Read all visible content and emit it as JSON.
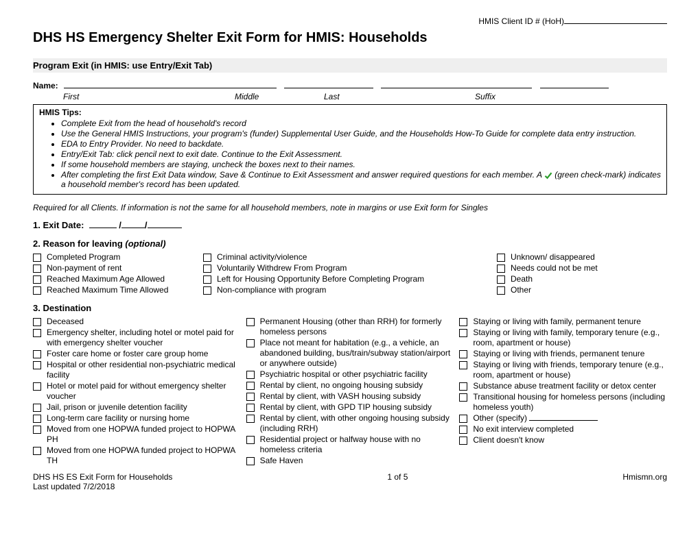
{
  "header": {
    "client_id_label": "HMIS Client ID # (HoH)",
    "client_id_blank_width": 150,
    "doc_title": "DHS HS Emergency Shelter Exit Form for HMIS: Households"
  },
  "section_bar": "Program Exit (in HMIS: use Entry/Exit Tab)",
  "name_row": {
    "label": "Name:",
    "first_width": 310,
    "middle_width": 130,
    "last_width": 220,
    "suffix_width": 100,
    "sub_first": "First",
    "sub_middle": "Middle",
    "sub_last": "Last",
    "sub_suffix": "Suffix",
    "sub_first_w": 250,
    "sub_middle_w": 130,
    "sub_last_w": 220,
    "sub_suffix_w": 100
  },
  "tips": {
    "title": "HMIS Tips:",
    "items": [
      "Complete Exit from the head of household's record",
      "Use the General HMIS Instructions, your program's (funder) Supplemental User Guide, and the Households How-To Guide for complete data entry instruction.",
      "EDA to Entry Provider. No need to backdate.",
      "Entry/Exit Tab: click pencil next to exit date. Continue to the Exit Assessment.",
      "If some household members are staying, uncheck the boxes next to their names."
    ],
    "last_item_pre": "After completing the first Exit Data window, Save & Continue to Exit Assessment and answer required questions for each member. A ",
    "last_item_post": " (green check-mark) indicates a household member's record has been updated.",
    "check_color": "#2e9e2e"
  },
  "required_note": "Required for all Clients. If information is not the same for all household members, note in margins or use Exit form for Singles",
  "q1": {
    "heading": "1. Exit Date:",
    "blank1_w": 40,
    "blank2_w": 34,
    "blank3_w": 50
  },
  "q2": {
    "heading": "2. Reason for leaving ",
    "optional": "(optional)",
    "col1": [
      "Completed Program",
      "Non-payment of rent",
      "Reached Maximum Age Allowed",
      "Reached Maximum Time Allowed"
    ],
    "col2": [
      "Criminal activity/violence",
      "Voluntarily Withdrew From Program",
      "Left for Housing Opportunity Before Completing Program",
      "Non-compliance with program"
    ],
    "col3": [
      "Unknown/ disappeared",
      "Needs could not be met",
      "Death",
      "Other"
    ],
    "col1_w": 240,
    "col2_w": 420,
    "col3_w": 220
  },
  "q3": {
    "heading": "3. Destination",
    "col1": [
      "Deceased",
      "Emergency shelter, including hotel or motel paid for with emergency shelter voucher",
      "Foster care home or foster care group home",
      "Hospital or other residential non-psychiatric medical facility",
      "Hotel or motel paid for without emergency shelter voucher",
      "Jail, prison or juvenile detention facility",
      "Long-term care facility or nursing home",
      "Moved from one HOPWA funded project to HOPWA PH",
      "Moved from one HOPWA funded project to HOPWA TH"
    ],
    "col2": [
      "Permanent Housing (other than RRH) for formerly homeless persons",
      "Place not meant for habitation (e.g., a vehicle, an abandoned building, bus/train/subway station/airport or anywhere outside)",
      "Psychiatric hospital or other psychiatric facility",
      "Rental by client, no ongoing housing subsidy",
      "Rental by client, with VASH housing subsidy",
      "Rental by client, with GPD TIP housing subsidy",
      "Rental by client, with other ongoing housing subsidy (including RRH)",
      "Residential project or halfway house with no homeless criteria",
      "Safe Haven"
    ],
    "col3": [
      "Staying or living with family, permanent tenure",
      "Staying or living with family, temporary tenure (e.g., room, apartment or house)",
      "Staying or living with friends, permanent tenure",
      "Staying or living with friends, temporary tenure (e.g., room, apartment or house)",
      "Substance abuse treatment facility or detox center",
      "Transitional housing for homeless persons (including homeless youth)"
    ],
    "col3_special_other": "Other (specify) ",
    "col3_after_special": [
      "No exit interview completed",
      "Client doesn't know"
    ]
  },
  "footer": {
    "left_line1": "DHS HS ES Exit Form for Households",
    "left_line2": "Last updated 7/2/2018",
    "center": "1 of 5",
    "right": "Hmismn.org"
  }
}
